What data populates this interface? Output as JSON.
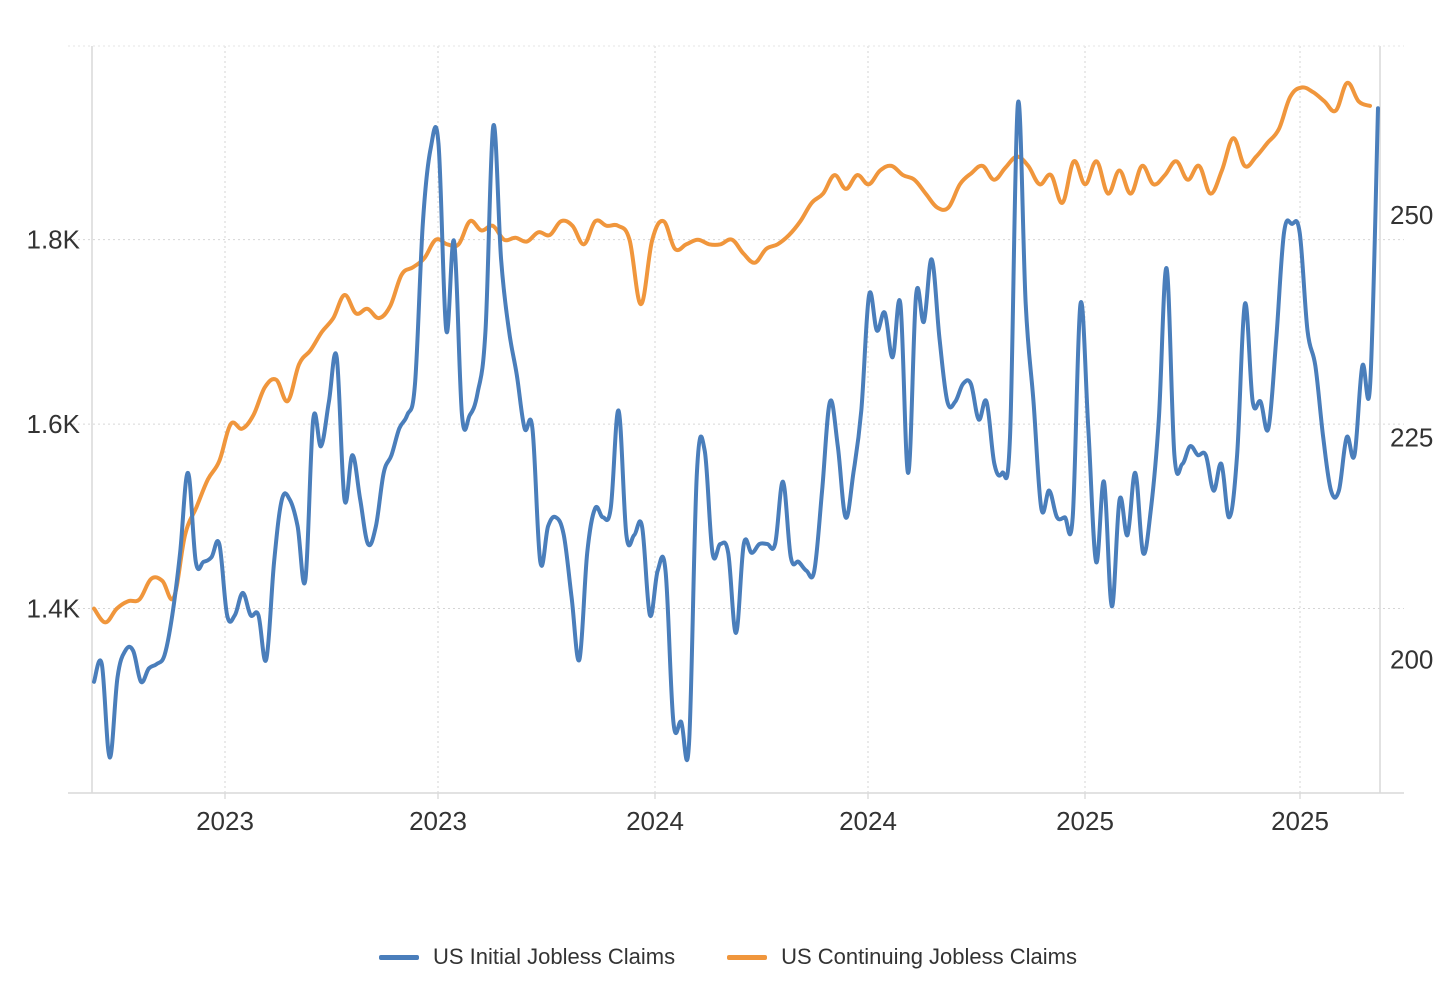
{
  "chart_data": {
    "type": "line",
    "title": "",
    "xlabel": "",
    "ylabel": "",
    "x_tick_labels": [
      "2023",
      "2023",
      "2024",
      "2024",
      "2025",
      "2025"
    ],
    "y_left": {
      "range": [
        1200,
        2010
      ],
      "ticks": [
        1400,
        1600,
        1800
      ],
      "tick_labels": [
        "1.4K",
        "1.6K",
        "1.8K"
      ]
    },
    "y_right": {
      "range": [
        185,
        269
      ],
      "ticks": [
        200,
        225,
        250
      ],
      "tick_labels": [
        "200",
        "225",
        "250"
      ]
    },
    "grid": true,
    "legend_position": "bottom-center",
    "series": [
      {
        "name": "US Initial Jobless Claims",
        "axis": "right",
        "color": "#4a7ebb",
        "values": [
          197.5,
          199.5,
          189,
          198,
          201,
          201,
          197.5,
          199,
          199.5,
          200.5,
          205,
          212,
          221,
          211,
          211,
          211.5,
          213,
          205,
          205,
          207.5,
          205,
          205,
          200,
          211,
          218,
          218,
          215,
          209,
          227,
          224,
          229,
          234,
          218,
          223,
          218,
          213,
          215,
          221,
          223,
          226,
          227.5,
          231,
          249,
          257.5,
          258,
          237,
          247,
          227.5,
          227.5,
          230,
          237,
          260,
          245,
          237,
          232,
          226,
          226,
          211,
          215,
          216,
          214,
          207,
          200,
          212,
          217,
          216,
          217,
          228,
          214,
          214,
          215,
          205,
          210,
          210,
          193,
          193,
          190.5,
          221,
          223.5,
          212,
          213,
          212,
          203,
          213,
          212,
          213,
          213,
          213,
          220,
          211.5,
          211,
          210,
          210,
          219,
          229,
          224,
          216,
          221,
          228,
          241,
          237,
          239,
          234,
          240,
          221,
          241,
          238,
          245,
          236,
          229,
          229,
          231,
          231,
          227,
          229,
          222,
          221,
          225,
          262.5,
          240,
          229,
          217,
          219,
          216,
          216,
          216,
          240,
          226,
          211,
          220,
          206,
          218,
          214,
          221,
          212,
          217,
          227,
          244,
          223,
          222,
          224,
          223,
          223,
          219,
          222,
          216,
          223,
          240,
          229,
          229,
          226,
          236,
          248,
          249,
          248,
          237,
          233,
          225,
          219,
          219,
          225,
          223,
          233,
          231,
          262
        ]
      },
      {
        "name": "US Continuing Jobless Claims",
        "axis": "left",
        "color": "#f0963c",
        "values": [
          1400,
          1385,
          1400,
          1408,
          1410,
          1432,
          1430,
          1412,
          1480,
          1510,
          1540,
          1560,
          1600,
          1595,
          1610,
          1640,
          1648,
          1625,
          1665,
          1680,
          1700,
          1715,
          1740,
          1720,
          1725,
          1715,
          1728,
          1762,
          1770,
          1780,
          1800,
          1795,
          1795,
          1820,
          1810,
          1815,
          1800,
          1802,
          1798,
          1808,
          1805,
          1820,
          1815,
          1795,
          1820,
          1815,
          1815,
          1800,
          1730,
          1800,
          1820,
          1790,
          1795,
          1800,
          1795,
          1795,
          1800,
          1785,
          1775,
          1790,
          1795,
          1805,
          1820,
          1840,
          1850,
          1870,
          1855,
          1870,
          1860,
          1875,
          1880,
          1870,
          1865,
          1850,
          1835,
          1835,
          1860,
          1872,
          1880,
          1865,
          1878,
          1890,
          1880,
          1860,
          1870,
          1840,
          1885,
          1860,
          1885,
          1850,
          1875,
          1850,
          1880,
          1860,
          1870,
          1885,
          1865,
          1880,
          1850,
          1875,
          1910,
          1880,
          1890,
          1905,
          1920,
          1955,
          1965,
          1960,
          1950,
          1940,
          1970,
          1950,
          1945
        ]
      }
    ]
  }
}
